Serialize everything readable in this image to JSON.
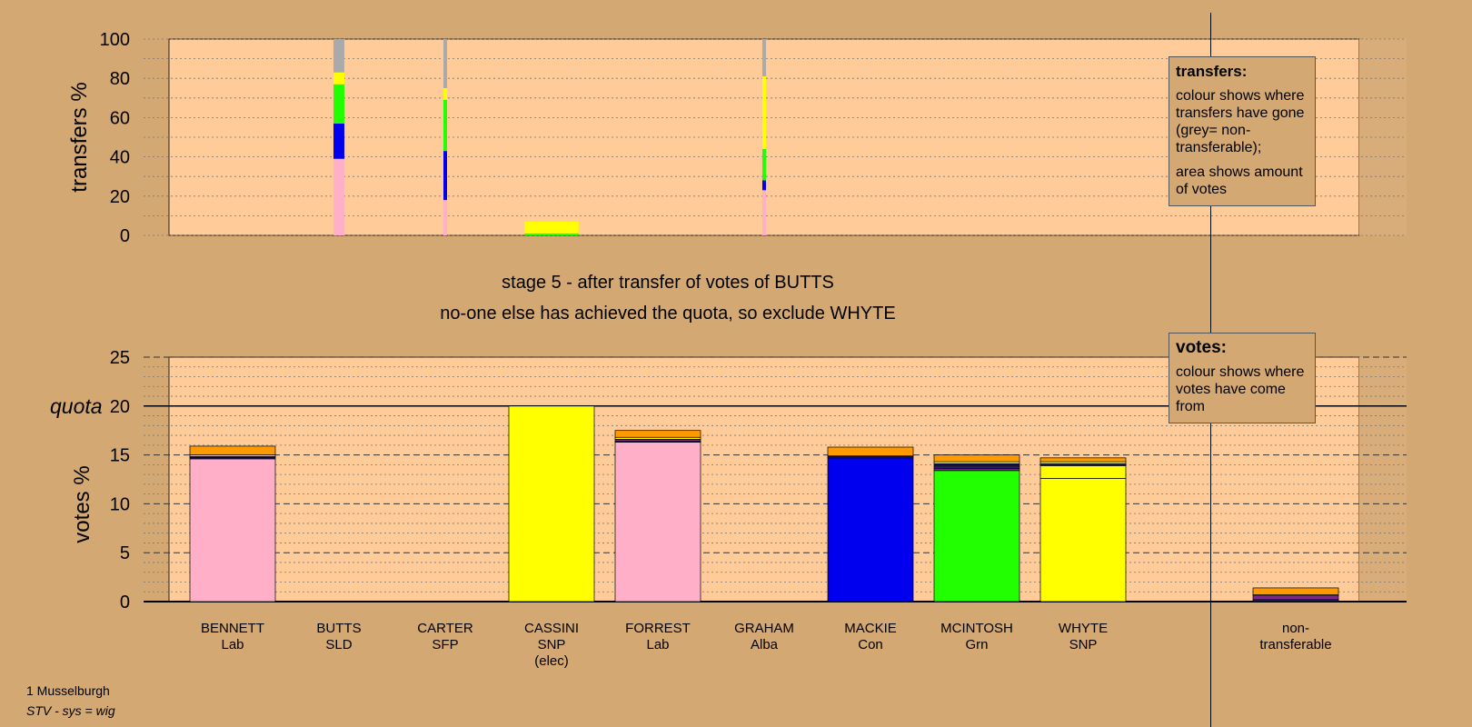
{
  "stage_title": "stage 5 - after transfer of votes of BUTTS",
  "stage_subtitle": "no-one else has achieved the quota, so exclude WHYTE",
  "transfers_legend": {
    "title": "transfers:",
    "line1": "colour shows where transfers have gone (grey= non-transferable);",
    "line2": "area shows amount of votes"
  },
  "votes_legend": {
    "title": "votes:",
    "line1": "colour shows where votes have come from"
  },
  "footer": {
    "ward": "1 Musselburgh",
    "system": "STV - sys = wig"
  },
  "colors": {
    "Lab": "#ffb0c8",
    "SLD": "#ff9900",
    "SFP": "#7b2a88",
    "SNP": "#ffff00",
    "Alba": "#222266",
    "Con": "#0000ee",
    "Grn": "#22ff00",
    "nontransferable": "#aaaaaa",
    "background": "#d4a872",
    "plot": "#ffcc99"
  },
  "chart_data": [
    {
      "type": "bar",
      "name": "transfers",
      "ylabel": "transfers %",
      "ylim": [
        0,
        100
      ],
      "yticks": [
        0,
        20,
        40,
        60,
        80,
        100
      ],
      "grid": true,
      "columns": [
        {
          "candidate": "BUTTS",
          "width_share": 0.12,
          "segments": [
            {
              "to": "Lab",
              "value": 39
            },
            {
              "to": "Con",
              "value": 18
            },
            {
              "to": "Grn",
              "value": 20
            },
            {
              "to": "SNP",
              "value": 6
            },
            {
              "to": "nontransferable",
              "value": 17
            }
          ]
        },
        {
          "candidate": "CARTER",
          "width_share": 0.03,
          "segments": [
            {
              "to": "Lab",
              "value": 18
            },
            {
              "to": "Con",
              "value": 25
            },
            {
              "to": "Grn",
              "value": 26
            },
            {
              "to": "SNP",
              "value": 6
            },
            {
              "to": "nontransferable",
              "value": 25
            }
          ]
        },
        {
          "candidate": "CASSINI",
          "width_share": 0.6,
          "segments": [
            {
              "to": "Grn",
              "value": 1
            },
            {
              "to": "SNP",
              "value": 6
            }
          ]
        },
        {
          "candidate": "GRAHAM",
          "width_share": 0.03,
          "segments": [
            {
              "to": "Lab",
              "value": 23
            },
            {
              "to": "Con",
              "value": 5
            },
            {
              "to": "Grn",
              "value": 16
            },
            {
              "to": "SNP",
              "value": 37
            },
            {
              "to": "nontransferable",
              "value": 19
            }
          ]
        }
      ]
    },
    {
      "type": "bar",
      "name": "votes",
      "ylabel": "votes %",
      "ylim": [
        0,
        25
      ],
      "yticks": [
        0,
        5,
        10,
        15,
        20,
        25
      ],
      "quota": 20,
      "quota_label": "quota",
      "grid": true,
      "categories": [
        {
          "name": "BENNETT",
          "party": "Lab",
          "elected": ""
        },
        {
          "name": "BUTTS",
          "party": "SLD",
          "elected": ""
        },
        {
          "name": "CARTER",
          "party": "SFP",
          "elected": ""
        },
        {
          "name": "CASSINI",
          "party": "SNP",
          "elected": "(elec)"
        },
        {
          "name": "FORREST",
          "party": "Lab",
          "elected": ""
        },
        {
          "name": "GRAHAM",
          "party": "Alba",
          "elected": ""
        },
        {
          "name": "MACKIE",
          "party": "Con",
          "elected": ""
        },
        {
          "name": "MCINTOSH",
          "party": "Grn",
          "elected": ""
        },
        {
          "name": "WHYTE",
          "party": "SNP",
          "elected": ""
        },
        {
          "name": "non-",
          "party": "transferable",
          "elected": ""
        }
      ],
      "stacks": [
        [
          {
            "from": "Lab",
            "value": 14.6
          },
          {
            "from": "Alba",
            "value": 0.15
          },
          {
            "from": "SFP",
            "value": 0.1
          },
          {
            "from": "SNP",
            "value": 0.15
          },
          {
            "from": "SLD",
            "value": 0.9
          }
        ],
        [],
        [],
        [
          {
            "from": "SNP",
            "value": 20.0
          }
        ],
        [
          {
            "from": "Lab",
            "value": 16.3
          },
          {
            "from": "Alba",
            "value": 0.1
          },
          {
            "from": "SFP",
            "value": 0.2
          },
          {
            "from": "SNP",
            "value": 0.2
          },
          {
            "from": "SLD",
            "value": 0.7
          }
        ],
        [],
        [
          {
            "from": "Con",
            "value": 14.7
          },
          {
            "from": "SFP",
            "value": 0.1
          },
          {
            "from": "Alba",
            "value": 0.1
          },
          {
            "from": "SLD",
            "value": 0.9
          }
        ],
        [
          {
            "from": "Grn",
            "value": 13.4
          },
          {
            "from": "SFP",
            "value": 0.2
          },
          {
            "from": "Alba",
            "value": 0.2
          },
          {
            "from": "Lab",
            "value": 0.1
          },
          {
            "from": "Con",
            "value": 0.2
          },
          {
            "from": "SNP",
            "value": 0.2
          },
          {
            "from": "SLD",
            "value": 0.7
          }
        ],
        [
          {
            "from": "SNP",
            "value": 12.6
          },
          {
            "from": "SNP",
            "value": 1.3
          },
          {
            "from": "Alba",
            "value": 0.2
          },
          {
            "from": "SNP",
            "value": 0.2
          },
          {
            "from": "SLD",
            "value": 0.4
          }
        ],
        [
          {
            "from": "Alba",
            "value": 0.2
          },
          {
            "from": "SFP",
            "value": 0.4
          },
          {
            "from": "SNP",
            "value": 0.1
          },
          {
            "from": "SLD",
            "value": 0.7
          }
        ]
      ]
    }
  ]
}
